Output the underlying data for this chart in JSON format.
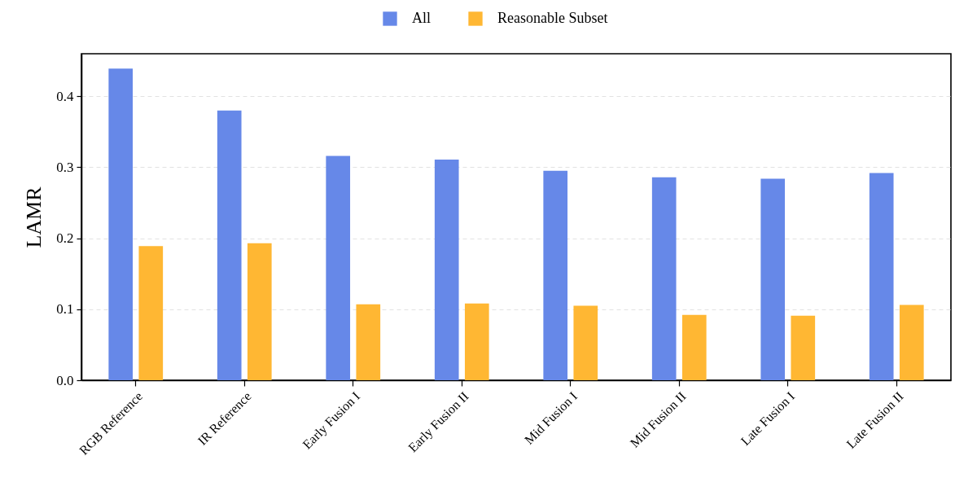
{
  "chart_data": {
    "type": "bar",
    "ylabel": "LAMR",
    "categories": [
      "RGB Reference",
      "IR Reference",
      "Early Fusion I",
      "Early Fusion II",
      "Mid Fusion I",
      "Mid Fusion II",
      "Late Fusion I",
      "Late Fusion II"
    ],
    "series": [
      {
        "name": "All",
        "color": "#6688e8",
        "values": [
          0.439,
          0.38,
          0.316,
          0.311,
          0.295,
          0.286,
          0.284,
          0.292
        ]
      },
      {
        "name": "Reasonable Subset",
        "color": "#ffb733",
        "values": [
          0.189,
          0.193,
          0.107,
          0.108,
          0.105,
          0.092,
          0.091,
          0.106
        ]
      }
    ],
    "ylim": [
      0,
      0.46
    ],
    "yticks": [
      {
        "value": 0,
        "label": "0.0"
      },
      0.1,
      0.2,
      0.3,
      0.4
    ],
    "grid": "y",
    "legend": "top"
  }
}
